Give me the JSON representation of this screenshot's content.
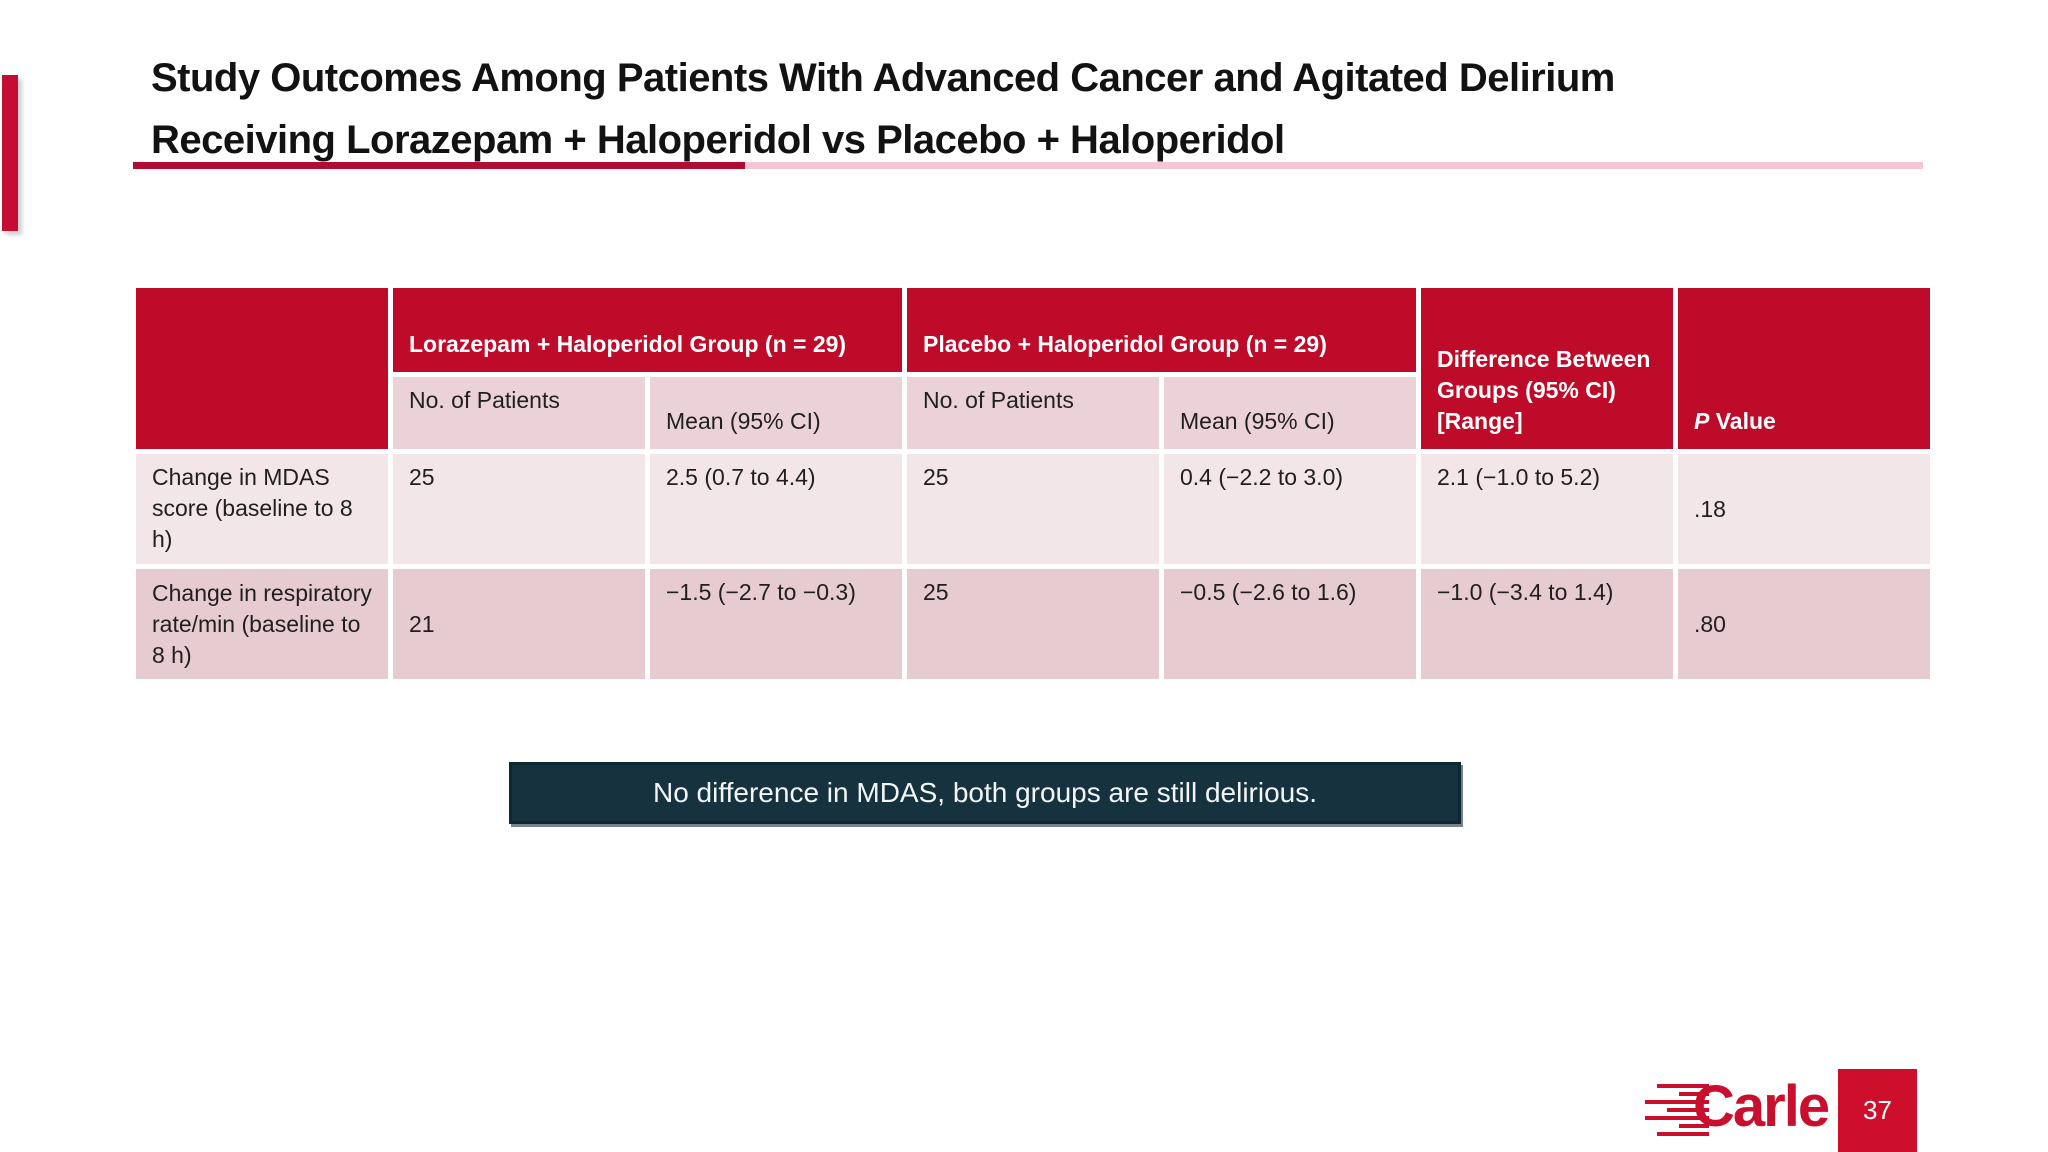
{
  "slide": {
    "title_lines": [
      "Study Outcomes Among Patients With Advanced Cancer and Agitated Delirium",
      "Receiving Lorazepam + Haloperidol vs Placebo + Haloperidol"
    ],
    "callout": "No difference in MDAS, both groups are still delirious.",
    "logo_text": "Carle",
    "page_number": "37"
  },
  "colors": {
    "table_header_red": "#BE0B29",
    "subheader_pink": "#EBD2D8",
    "row_light_pink": "#F2E6E9",
    "row_dark_pink": "#E6CBD1",
    "accent_red": "#C50D33",
    "divider_dark": "#B00D33",
    "divider_light": "#F5C6D4",
    "callout_fill": "#16323E",
    "callout_border": "#0B2833",
    "logo_red": "#C8102E"
  },
  "table": {
    "group_headers": [
      {
        "label": "Lorazepam + Haloperidol Group (n = 29)"
      },
      {
        "label": "Placebo + Haloperidol Group (n = 29)"
      }
    ],
    "subheaders": {
      "patients": "No. of Patients",
      "mean": "Mean (95% CI)"
    },
    "difference_header_lines": [
      "Difference Between",
      "Groups (95% CI)",
      "[Range]"
    ],
    "p_value_header": "P Value",
    "rows": [
      {
        "label": "Change in MDAS score (baseline to 8 h)",
        "lorazepam_n": "25",
        "lorazepam_mean": "2.5 (0.7 to 4.4)",
        "placebo_n": "25",
        "placebo_mean": "0.4 (−2.2 to 3.0)",
        "difference": "2.1 (−1.0 to 5.2)",
        "p_value": ".18"
      },
      {
        "label": "Change in respiratory rate/min (baseline to 8 h)",
        "lorazepam_n": "21",
        "lorazepam_mean": "−1.5 (−2.7 to −0.3)",
        "placebo_n": "25",
        "placebo_mean": "−0.5 (−2.6 to 1.6)",
        "difference": "−1.0 (−3.4 to 1.4)",
        "p_value": ".80"
      }
    ]
  }
}
